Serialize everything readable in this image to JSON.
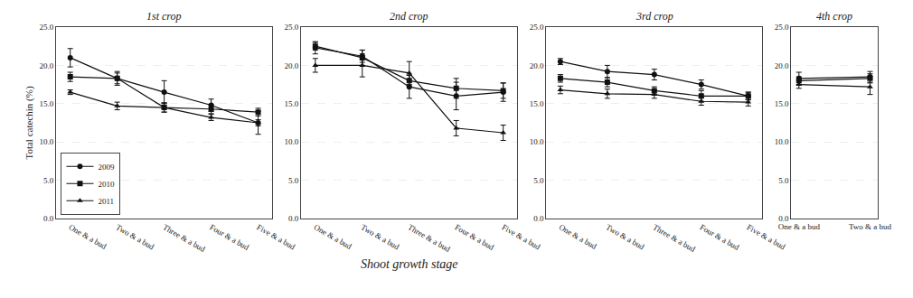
{
  "chart_data": [
    {
      "type": "line",
      "title": "1st crop",
      "categories": [
        "One & a bud",
        "Two & a bud",
        "Three & a bud",
        "Four & a bud",
        "Five & a bud"
      ],
      "series": [
        {
          "name": "2009",
          "color": "#111111",
          "marker": "circle",
          "values": [
            21.0,
            18.3,
            16.5,
            14.8,
            12.5
          ],
          "errors": [
            1.2,
            0.9,
            1.5,
            0.8,
            1.5
          ]
        },
        {
          "name": "2010",
          "color": "#111111",
          "marker": "square",
          "values": [
            18.5,
            18.3,
            14.5,
            14.3,
            13.9
          ],
          "errors": [
            0.6,
            0.7,
            0.6,
            0.6,
            0.5
          ]
        },
        {
          "name": "2011",
          "color": "#111111",
          "marker": "triangle-up",
          "values": [
            16.5,
            14.7,
            14.5,
            13.2,
            12.5
          ],
          "errors": [
            0.3,
            0.5,
            0.6,
            0.4,
            0.4
          ]
        }
      ],
      "ylim": [
        0.0,
        25.0
      ],
      "yticks": [
        {
          "value": 0.0,
          "label": "0.0"
        },
        {
          "value": 5.0,
          "label": "5.0"
        },
        {
          "value": 10.0,
          "label": "10.0"
        },
        {
          "value": 15.0,
          "label": "15.0"
        },
        {
          "value": 20.0,
          "label": "20.0"
        },
        {
          "value": 25.0,
          "label": "25.0"
        }
      ],
      "ylabel": "Total catechin (%)",
      "grid": true,
      "legend": "lower left"
    },
    {
      "type": "line",
      "title": "2nd crop",
      "categories": [
        "One & a bud",
        "Two & a bud",
        "Three & a bud",
        "Four & a bud",
        "Five & a bud"
      ],
      "series": [
        {
          "name": "2009",
          "color": "#111111",
          "marker": "circle",
          "values": [
            22.3,
            21.2,
            17.2,
            16.0,
            16.5
          ],
          "errors": [
            0.8,
            0.8,
            1.5,
            1.8,
            1.2
          ]
        },
        {
          "name": "2010",
          "color": "#111111",
          "marker": "square",
          "values": [
            22.5,
            21.0,
            18.0,
            17.0,
            16.7
          ],
          "errors": [
            0.5,
            1.0,
            0.7,
            1.3,
            1.0
          ]
        },
        {
          "name": "2011",
          "color": "#111111",
          "marker": "triangle-up",
          "values": [
            20.0,
            20.0,
            19.0,
            11.8,
            11.2
          ],
          "errors": [
            0.9,
            1.5,
            1.5,
            1.0,
            1.0
          ]
        }
      ],
      "ylim": [
        0.0,
        25.0
      ],
      "yticks": [
        {
          "value": 0.0,
          "label": "0.0"
        },
        {
          "value": 5.0,
          "label": "5.0"
        },
        {
          "value": 10.0,
          "label": "10.0"
        },
        {
          "value": 15.0,
          "label": "15.0"
        },
        {
          "value": 20.0,
          "label": "20.0"
        },
        {
          "value": 25.0,
          "label": "25.0"
        }
      ],
      "xlabel": "Shoot growth stage",
      "grid": true
    },
    {
      "type": "line",
      "title": "3rd crop",
      "categories": [
        "One & a bud",
        "Two & a bud",
        "Three & a bud",
        "Four & a bud",
        "Five & a bud"
      ],
      "series": [
        {
          "name": "2009",
          "color": "#111111",
          "marker": "circle",
          "values": [
            20.5,
            19.2,
            18.8,
            17.5,
            16.0
          ],
          "errors": [
            0.4,
            0.8,
            0.7,
            0.6,
            0.5
          ]
        },
        {
          "name": "2010",
          "color": "#111111",
          "marker": "square",
          "values": [
            18.3,
            17.8,
            16.7,
            16.0,
            16.0
          ],
          "errors": [
            0.5,
            0.6,
            0.5,
            0.7,
            0.5
          ]
        },
        {
          "name": "2011",
          "color": "#111111",
          "marker": "triangle-up",
          "values": [
            16.8,
            16.3,
            16.2,
            15.3,
            15.2
          ],
          "errors": [
            0.5,
            0.6,
            0.5,
            0.5,
            0.5
          ]
        }
      ],
      "ylim": [
        0.0,
        25.0
      ],
      "yticks": [
        {
          "value": 0.0,
          "label": "0.0"
        },
        {
          "value": 5.0,
          "label": "5.0"
        },
        {
          "value": 10.0,
          "label": "10.0"
        },
        {
          "value": 15.0,
          "label": "15.0"
        },
        {
          "value": 20.0,
          "label": "20.0"
        },
        {
          "value": 25.0,
          "label": "25.0"
        }
      ],
      "grid": true
    },
    {
      "type": "line",
      "title": "4th crop",
      "categories": [
        "One & a bud",
        "Two & a bud"
      ],
      "series": [
        {
          "name": "2009",
          "color": "#111111",
          "marker": "circle",
          "values": [
            18.3,
            18.5
          ],
          "errors": [
            0.8,
            0.7
          ]
        },
        {
          "name": "2010",
          "color": "#111111",
          "marker": "square",
          "values": [
            18.0,
            18.3
          ],
          "errors": [
            0.5,
            0.6
          ]
        },
        {
          "name": "2011",
          "color": "#111111",
          "marker": "triangle-up",
          "values": [
            17.5,
            17.2
          ],
          "errors": [
            0.5,
            1.0
          ]
        }
      ],
      "ylim": [
        0.0,
        25.0
      ],
      "yticks": [
        {
          "value": 0.0,
          "label": "0.0"
        },
        {
          "value": 5.0,
          "label": "5.0"
        },
        {
          "value": 10.0,
          "label": "10.0"
        },
        {
          "value": 15.0,
          "label": "15.0"
        },
        {
          "value": 20.0,
          "label": "20.0"
        },
        {
          "value": 25.0,
          "label": "25.0"
        }
      ],
      "grid": true
    }
  ]
}
